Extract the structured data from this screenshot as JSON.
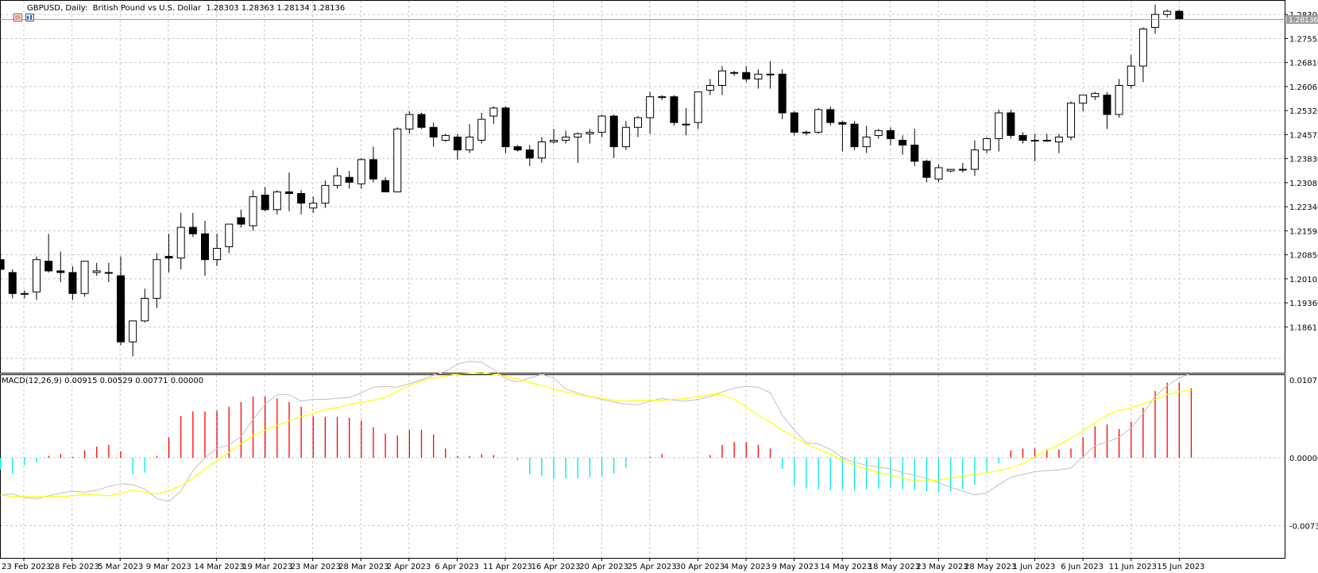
{
  "header": {
    "symbol_text": "GBPUSD, Daily:  British Pound vs U.S. Dollar  1.28303 1.28363 1.28134 1.28136"
  },
  "current_price_label": "1.28136",
  "macd": {
    "label": "MACD(12,26,9) 0.00915 0.00529 0.00771 0.00000",
    "axis_labels": [
      "0.01071",
      "0.00000",
      "-0.00733"
    ],
    "range": [
      -0.00733,
      0.01071
    ],
    "main_color": "#c0c0c0",
    "signal_color": "#ffff00",
    "hist_pos_color": "#ff0000",
    "hist_neg_color": "#00e5ee"
  },
  "colors": {
    "bull_body": "#ffffff",
    "bear_body": "#000000",
    "grid": "#c8c8c8"
  },
  "chart_data": {
    "type": "candlestick",
    "title": "GBPUSD, Daily:  British Pound vs U.S. Dollar",
    "ylim": [
      1.1825,
      1.2875
    ],
    "y_ticks": [
      "1.28300",
      "1.27555",
      "1.26810",
      "1.26065",
      "1.25320",
      "1.24575",
      "1.23830",
      "1.23085",
      "1.22340",
      "1.21595",
      "1.20850",
      "1.20105",
      "1.19360",
      "1.18615"
    ],
    "x_tick_labels": [
      "23 Feb 2023",
      "28 Feb 2023",
      "5 Mar 2023",
      "9 Mar 2023",
      "14 Mar 2023",
      "19 Mar 2023",
      "23 Mar 2023",
      "28 Mar 2023",
      "2 Apr 2023",
      "6 Apr 2023",
      "11 Apr 2023",
      "16 Apr 2023",
      "20 Apr 2023",
      "25 Apr 2023",
      "30 Apr 2023",
      "4 May 2023",
      "9 May 2023",
      "14 May 2023",
      "18 May 2023",
      "23 May 2023",
      "28 May 2023",
      "1 Jun 2023",
      "6 Jun 2023",
      "11 Jun 2023",
      "15 Jun 2023"
    ],
    "candles": [
      [
        1.207,
        1.209,
        1.2005,
        1.204
      ],
      [
        1.203,
        1.204,
        1.195,
        1.1965
      ],
      [
        1.1965,
        1.1975,
        1.195,
        1.1965
      ],
      [
        1.197,
        1.208,
        1.1945,
        1.207
      ],
      [
        1.2065,
        1.215,
        1.203,
        1.2035
      ],
      [
        1.2035,
        1.2095,
        1.2,
        1.203
      ],
      [
        1.203,
        1.205,
        1.1945,
        1.1965
      ],
      [
        1.1965,
        1.2065,
        1.1955,
        1.2065
      ],
      [
        1.203,
        1.206,
        1.202,
        1.2035
      ],
      [
        1.203,
        1.206,
        1.2,
        1.203
      ],
      [
        1.202,
        1.208,
        1.1805,
        1.1815
      ],
      [
        1.1815,
        1.188,
        1.177,
        1.188
      ],
      [
        1.188,
        1.198,
        1.1875,
        1.195
      ],
      [
        1.195,
        1.209,
        1.192,
        1.207
      ],
      [
        1.208,
        1.215,
        1.203,
        1.2075
      ],
      [
        1.2075,
        1.2215,
        1.204,
        1.217
      ],
      [
        1.217,
        1.2215,
        1.214,
        1.215
      ],
      [
        1.215,
        1.219,
        1.202,
        1.207
      ],
      [
        1.207,
        1.215,
        1.205,
        1.2105
      ],
      [
        1.211,
        1.218,
        1.209,
        1.218
      ],
      [
        1.22,
        1.2225,
        1.217,
        1.218
      ],
      [
        1.2175,
        1.2285,
        1.216,
        1.2265
      ],
      [
        1.227,
        1.2295,
        1.222,
        1.2225
      ],
      [
        1.2225,
        1.2285,
        1.221,
        1.228
      ],
      [
        1.228,
        1.234,
        1.222,
        1.2275
      ],
      [
        1.2275,
        1.2285,
        1.221,
        1.2245
      ],
      [
        1.223,
        1.2265,
        1.2215,
        1.2245
      ],
      [
        1.2245,
        1.2315,
        1.223,
        1.23
      ],
      [
        1.23,
        1.2355,
        1.229,
        1.233
      ],
      [
        1.2325,
        1.2345,
        1.229,
        1.231
      ],
      [
        1.2305,
        1.2385,
        1.229,
        1.238
      ],
      [
        1.238,
        1.242,
        1.231,
        1.232
      ],
      [
        1.2315,
        1.2325,
        1.228,
        1.228
      ],
      [
        1.228,
        1.248,
        1.228,
        1.2475
      ],
      [
        1.2475,
        1.253,
        1.246,
        1.252
      ],
      [
        1.252,
        1.2525,
        1.2475,
        1.248
      ],
      [
        1.248,
        1.2495,
        1.242,
        1.245
      ],
      [
        1.244,
        1.246,
        1.2435,
        1.2455
      ],
      [
        1.245,
        1.246,
        1.238,
        1.241
      ],
      [
        1.241,
        1.249,
        1.24,
        1.245
      ],
      [
        1.244,
        1.2525,
        1.243,
        1.2505
      ],
      [
        1.2515,
        1.2545,
        1.249,
        1.254
      ],
      [
        1.254,
        1.2545,
        1.24,
        1.242
      ],
      [
        1.242,
        1.2425,
        1.2405,
        1.241
      ],
      [
        1.241,
        1.2425,
        1.236,
        1.2385
      ],
      [
        1.2385,
        1.245,
        1.237,
        1.2435
      ],
      [
        1.2435,
        1.2475,
        1.243,
        1.244
      ],
      [
        1.244,
        1.247,
        1.243,
        1.245
      ],
      [
        1.245,
        1.2465,
        1.237,
        1.246
      ],
      [
        1.246,
        1.2475,
        1.243,
        1.2465
      ],
      [
        1.2465,
        1.252,
        1.245,
        1.2515
      ],
      [
        1.2515,
        1.252,
        1.2385,
        1.242
      ],
      [
        1.242,
        1.25,
        1.241,
        1.248
      ],
      [
        1.248,
        1.2515,
        1.245,
        1.251
      ],
      [
        1.251,
        1.259,
        1.246,
        1.2575
      ],
      [
        1.2575,
        1.258,
        1.2565,
        1.2575
      ],
      [
        1.2575,
        1.258,
        1.2485,
        1.2495
      ],
      [
        1.249,
        1.254,
        1.2455,
        1.249
      ],
      [
        1.2495,
        1.259,
        1.2475,
        1.259
      ],
      [
        1.2595,
        1.263,
        1.258,
        1.261
      ],
      [
        1.261,
        1.267,
        1.258,
        1.2655
      ],
      [
        1.265,
        1.2655,
        1.264,
        1.265
      ],
      [
        1.265,
        1.267,
        1.262,
        1.263
      ],
      [
        1.263,
        1.266,
        1.26,
        1.2645
      ],
      [
        1.2645,
        1.2685,
        1.26,
        1.2645
      ],
      [
        1.2645,
        1.266,
        1.2505,
        1.2525
      ],
      [
        1.2525,
        1.253,
        1.2455,
        1.2465
      ],
      [
        1.2465,
        1.247,
        1.2455,
        1.2465
      ],
      [
        1.2465,
        1.254,
        1.246,
        1.2535
      ],
      [
        1.2535,
        1.2545,
        1.2485,
        1.2495
      ],
      [
        1.2495,
        1.25,
        1.2405,
        1.249
      ],
      [
        1.249,
        1.25,
        1.241,
        1.242
      ],
      [
        1.242,
        1.2485,
        1.24,
        1.245
      ],
      [
        1.2455,
        1.2475,
        1.2445,
        1.247
      ],
      [
        1.247,
        1.248,
        1.2425,
        1.2445
      ],
      [
        1.244,
        1.2455,
        1.2395,
        1.2425
      ],
      [
        1.2425,
        1.2475,
        1.236,
        1.2375
      ],
      [
        1.2375,
        1.238,
        1.231,
        1.2325
      ],
      [
        1.232,
        1.2365,
        1.231,
        1.2355
      ],
      [
        1.2345,
        1.235,
        1.234,
        1.235
      ],
      [
        1.235,
        1.237,
        1.234,
        1.235
      ],
      [
        1.235,
        1.244,
        1.233,
        1.241
      ],
      [
        1.241,
        1.245,
        1.24,
        1.2445
      ],
      [
        1.2445,
        1.2535,
        1.2405,
        1.2525
      ],
      [
        1.2525,
        1.2535,
        1.2445,
        1.2455
      ],
      [
        1.2455,
        1.2465,
        1.243,
        1.244
      ],
      [
        1.244,
        1.246,
        1.2375,
        1.244
      ],
      [
        1.244,
        1.246,
        1.2435,
        1.244
      ],
      [
        1.2435,
        1.246,
        1.24,
        1.245
      ],
      [
        1.245,
        1.256,
        1.244,
        1.2555
      ],
      [
        1.2555,
        1.258,
        1.253,
        1.258
      ],
      [
        1.2575,
        1.259,
        1.2565,
        1.2585
      ],
      [
        1.258,
        1.259,
        1.2475,
        1.252
      ],
      [
        1.252,
        1.263,
        1.251,
        1.261
      ],
      [
        1.261,
        1.2705,
        1.26,
        1.267
      ],
      [
        1.267,
        1.279,
        1.262,
        1.2785
      ],
      [
        1.279,
        1.286,
        1.277,
        1.283
      ],
      [
        1.283,
        1.2845,
        1.282,
        1.284
      ],
      [
        1.284,
        1.2845,
        1.2815,
        1.2815
      ]
    ],
    "macd_histogram": [
      -0.0013,
      -0.0017,
      -0.0008,
      -0.0005,
      0.0002,
      0.0004,
      0.0001,
      0.0008,
      0.0012,
      0.0014,
      0.0007,
      -0.0018,
      -0.0016,
      0.0002,
      0.0022,
      0.0045,
      0.005,
      0.005,
      0.0051,
      0.0055,
      0.006,
      0.0066,
      0.0066,
      0.0064,
      0.006,
      0.0055,
      0.0045,
      0.0044,
      0.0044,
      0.0043,
      0.004,
      0.0033,
      0.0026,
      0.0024,
      0.003,
      0.003,
      0.0025,
      0.001,
      0.0002,
      0.0002,
      0.0004,
      0.0003,
      0.0,
      -0.0003,
      -0.0018,
      -0.002,
      -0.0023,
      -0.0022,
      -0.0022,
      -0.0021,
      -0.002,
      -0.0017,
      -0.0011,
      0.0,
      0.0001,
      0.0004,
      0.0,
      0.0,
      0.0,
      0.0003,
      0.0014,
      0.0017,
      0.0017,
      0.0014,
      0.001,
      -0.0012,
      -0.003,
      -0.0033,
      -0.0034,
      -0.0035,
      -0.0034,
      -0.0035,
      -0.0034,
      -0.0033,
      -0.0033,
      -0.0034,
      -0.0035,
      -0.0036,
      -0.0037,
      -0.0036,
      -0.0034,
      -0.0029,
      -0.0015,
      -0.0006,
      0.0008,
      0.001,
      0.001,
      0.0009,
      0.0009,
      0.001,
      0.0022,
      0.0034,
      0.0036,
      0.0031,
      0.0039,
      0.0054,
      0.0072,
      0.0081,
      0.0081,
      0.0075
    ],
    "macd_main": [
      -0.004,
      -0.0039,
      -0.0043,
      -0.0044,
      -0.0041,
      -0.0038,
      -0.0036,
      -0.0037,
      -0.0035,
      -0.0031,
      -0.0028,
      -0.0029,
      -0.0034,
      -0.0044,
      -0.0047,
      -0.0036,
      -0.0014,
      0.0,
      0.001,
      0.0014,
      0.0023,
      0.0041,
      0.0058,
      0.0068,
      0.0068,
      0.0061,
      0.0063,
      0.0063,
      0.0064,
      0.0065,
      0.007,
      0.0076,
      0.0077,
      0.0076,
      0.008,
      0.0084,
      0.0089,
      0.0093,
      0.0101,
      0.0104,
      0.0103,
      0.0095,
      0.0085,
      0.0082,
      0.0086,
      0.009,
      0.0086,
      0.0074,
      0.007,
      0.0066,
      0.0063,
      0.006,
      0.0058,
      0.0057,
      0.0061,
      0.0064,
      0.0062,
      0.0061,
      0.0063,
      0.0066,
      0.0071,
      0.0075,
      0.0077,
      0.0076,
      0.007,
      0.0046,
      0.003,
      0.0016,
      0.0015,
      0.0009,
      0.0,
      -0.0005,
      -0.0008,
      -0.001,
      -0.0012,
      -0.0016,
      -0.0019,
      -0.0022,
      -0.0027,
      -0.0032,
      -0.0036,
      -0.004,
      -0.0038,
      -0.0029,
      -0.0021,
      -0.0018,
      -0.0015,
      -0.0014,
      -0.0013,
      -0.0011,
      0.0001,
      0.0013,
      0.0017,
      0.0022,
      0.0032,
      0.0048,
      0.0066,
      0.0078,
      0.0086,
      0.0091
    ],
    "macd_signal": [
      -0.004,
      -0.0042,
      -0.0042,
      -0.0042,
      -0.0042,
      -0.0042,
      -0.0041,
      -0.0039,
      -0.004,
      -0.0041,
      -0.0038,
      -0.0035,
      -0.0037,
      -0.0039,
      -0.0036,
      -0.003,
      -0.0022,
      -0.0012,
      -0.0003,
      0.0006,
      0.0015,
      0.0024,
      0.003,
      0.0035,
      0.004,
      0.0044,
      0.0048,
      0.0052,
      0.0054,
      0.0057,
      0.006,
      0.0062,
      0.0065,
      0.0072,
      0.0078,
      0.0083,
      0.0086,
      0.0088,
      0.009,
      0.0091,
      0.0092,
      0.009,
      0.0088,
      0.0085,
      0.0081,
      0.0078,
      0.0074,
      0.0071,
      0.0068,
      0.0066,
      0.0064,
      0.0062,
      0.0061,
      0.0062,
      0.0062,
      0.0062,
      0.0063,
      0.0064,
      0.0066,
      0.0068,
      0.0068,
      0.0063,
      0.0055,
      0.0046,
      0.0038,
      0.003,
      0.0022,
      0.0015,
      0.0009,
      0.0004,
      -0.0003,
      -0.0008,
      -0.0012,
      -0.0016,
      -0.0019,
      -0.0022,
      -0.0025,
      -0.0025,
      -0.0024,
      -0.0022,
      -0.002,
      -0.0018,
      -0.0016,
      -0.0014,
      -0.0011,
      -0.0006,
      0.0001,
      0.0008,
      0.0014,
      0.0021,
      0.0029,
      0.0038,
      0.0046,
      0.0051,
      0.0054,
      0.0058,
      0.0063,
      0.0068,
      0.0071,
      0.0073
    ]
  }
}
